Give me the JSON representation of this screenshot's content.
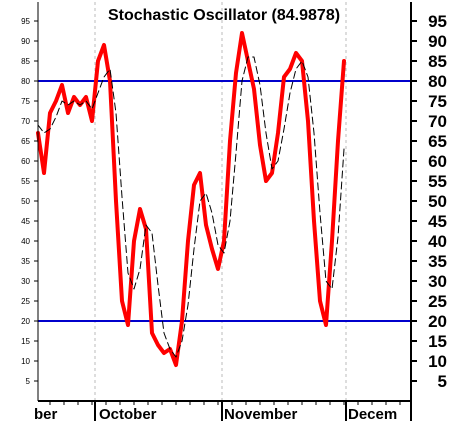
{
  "chart_data": {
    "type": "line",
    "title": "Stochastic Oscillator (84.9878)",
    "ylim": [
      0,
      100
    ],
    "y_ticks": [
      5,
      10,
      15,
      20,
      25,
      30,
      35,
      40,
      45,
      50,
      55,
      60,
      65,
      70,
      75,
      80,
      85,
      90,
      95
    ],
    "x_labels": [
      "ber",
      "October",
      "November",
      "Decem"
    ],
    "reference_lines": [
      {
        "value": 80,
        "color": "#0000cc"
      },
      {
        "value": 20,
        "color": "#0000cc"
      }
    ],
    "grid": "vertical dashed at month starts",
    "series": [
      {
        "style": "solid-thick",
        "color": "#ff0000",
        "values": [
          67,
          57,
          72,
          75,
          79,
          72,
          76,
          74,
          76,
          70,
          85,
          89,
          80,
          50,
          25,
          19,
          40,
          48,
          43,
          17,
          14,
          12,
          13,
          9,
          20,
          40,
          54,
          57,
          44,
          38,
          33,
          40,
          65,
          82,
          92,
          85,
          78,
          64,
          55,
          57,
          67,
          81,
          83,
          87,
          85,
          70,
          45,
          25,
          19,
          40,
          65,
          85
        ]
      },
      {
        "style": "dashed-thin",
        "color": "#000000",
        "values": [
          69,
          67,
          68,
          71,
          75,
          74,
          75,
          74,
          75,
          73,
          77,
          81,
          83,
          72,
          51,
          32,
          28,
          33,
          44,
          42,
          29,
          17,
          13,
          11,
          15,
          24,
          38,
          50,
          52,
          47,
          39,
          37,
          45,
          62,
          80,
          86,
          86,
          79,
          67,
          58,
          60,
          68,
          77,
          83,
          85,
          81,
          67,
          47,
          30,
          28,
          41,
          63
        ]
      }
    ]
  }
}
